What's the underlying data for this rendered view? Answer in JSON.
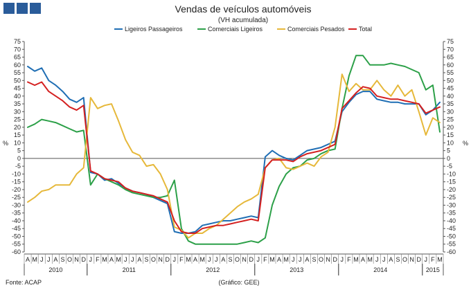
{
  "chart_data": {
    "type": "line",
    "title": "Vendas de veículos automóveis",
    "subtitle": "(VH acumulada)",
    "ylabel_left": "%",
    "ylabel_right": "%",
    "ylim": [
      -60,
      75
    ],
    "ytick_step": 5,
    "legend_position": "top-center",
    "grid": false,
    "source": "Fonte: ACAP",
    "graphic": "(Gráfico: GEE)",
    "months": [
      "A",
      "M",
      "J",
      "J",
      "A",
      "S",
      "O",
      "N",
      "D",
      "J",
      "F",
      "M",
      "A",
      "M",
      "J",
      "J",
      "A",
      "S",
      "O",
      "N",
      "D",
      "J",
      "F",
      "M",
      "A",
      "M",
      "J",
      "J",
      "A",
      "S",
      "O",
      "N",
      "D",
      "J",
      "F",
      "M",
      "A",
      "M",
      "J",
      "J",
      "A",
      "S",
      "O",
      "N",
      "D",
      "J",
      "F",
      "M",
      "A",
      "M",
      "J",
      "J",
      "A",
      "S",
      "O",
      "N",
      "D",
      "J",
      "F",
      "M"
    ],
    "years": [
      {
        "label": "2010",
        "start": 0,
        "end": 8
      },
      {
        "label": "2011",
        "start": 9,
        "end": 20
      },
      {
        "label": "2012",
        "start": 21,
        "end": 32
      },
      {
        "label": "2013",
        "start": 33,
        "end": 44
      },
      {
        "label": "2014",
        "start": 45,
        "end": 56
      },
      {
        "label": "2015",
        "start": 57,
        "end": 59
      }
    ],
    "series": [
      {
        "name": "Ligeiros Passageiros",
        "color": "#1f6eb4",
        "values": [
          59,
          56,
          58,
          50,
          47,
          43,
          38,
          36,
          39,
          -9,
          -10,
          -14,
          -13,
          -16,
          -19,
          -21,
          -22,
          -23,
          -25,
          -27,
          -29,
          -47,
          -48,
          -48,
          -47,
          -43,
          -42,
          -41,
          -40,
          -40,
          -39,
          -38,
          -37,
          -38,
          1,
          5,
          2,
          0,
          -1,
          2,
          5,
          6,
          7,
          9,
          11,
          30,
          36,
          41,
          43,
          43,
          38,
          37,
          36,
          36,
          35,
          35,
          35,
          28,
          31,
          36
        ]
      },
      {
        "name": "Comerciais Ligeiros",
        "color": "#2ca048",
        "values": [
          20,
          22,
          25,
          24,
          23,
          21,
          19,
          17,
          18,
          -17,
          -10,
          -13,
          -15,
          -17,
          -20,
          -22,
          -23,
          -24,
          -25,
          -25,
          -24,
          -14,
          -45,
          -53,
          -55,
          -55,
          -55,
          -55,
          -55,
          -55,
          -55,
          -54,
          -53,
          -54,
          -51,
          -30,
          -18,
          -10,
          -6,
          -5,
          -1,
          0,
          3,
          5,
          6,
          32,
          53,
          66,
          66,
          60,
          60,
          60,
          61,
          60,
          59,
          57,
          55,
          44,
          47,
          17
        ]
      },
      {
        "name": "Comerciais Pesados",
        "color": "#e6b83a",
        "values": [
          -28,
          -25,
          -21,
          -20,
          -17,
          -17,
          -17,
          -10,
          -6,
          39,
          32,
          34,
          35,
          24,
          12,
          4,
          2,
          -5,
          -4,
          -10,
          -20,
          -44,
          -46,
          -51,
          -48,
          -48,
          -45,
          -43,
          -39,
          -35,
          -31,
          -28,
          -26,
          -23,
          -6,
          -1,
          0,
          -6,
          -7,
          -5,
          -3,
          -5,
          1,
          4,
          20,
          54,
          43,
          48,
          44,
          44,
          50,
          44,
          40,
          47,
          40,
          44,
          30,
          15,
          26,
          23
        ]
      },
      {
        "name": "Total",
        "color": "#d42020",
        "values": [
          49,
          47,
          49,
          43,
          40,
          37,
          33,
          31,
          34,
          -8,
          -10,
          -13,
          -14,
          -15,
          -19,
          -21,
          -22,
          -23,
          -24,
          -26,
          -28,
          -40,
          -47,
          -48,
          -48,
          -45,
          -44,
          -43,
          -43,
          -42,
          -41,
          -40,
          -39,
          -40,
          -6,
          -1,
          -1,
          -1,
          -2,
          1,
          3,
          4,
          5,
          7,
          9,
          32,
          37,
          42,
          46,
          45,
          40,
          39,
          38,
          38,
          37,
          36,
          35,
          29,
          31,
          33
        ]
      }
    ]
  }
}
